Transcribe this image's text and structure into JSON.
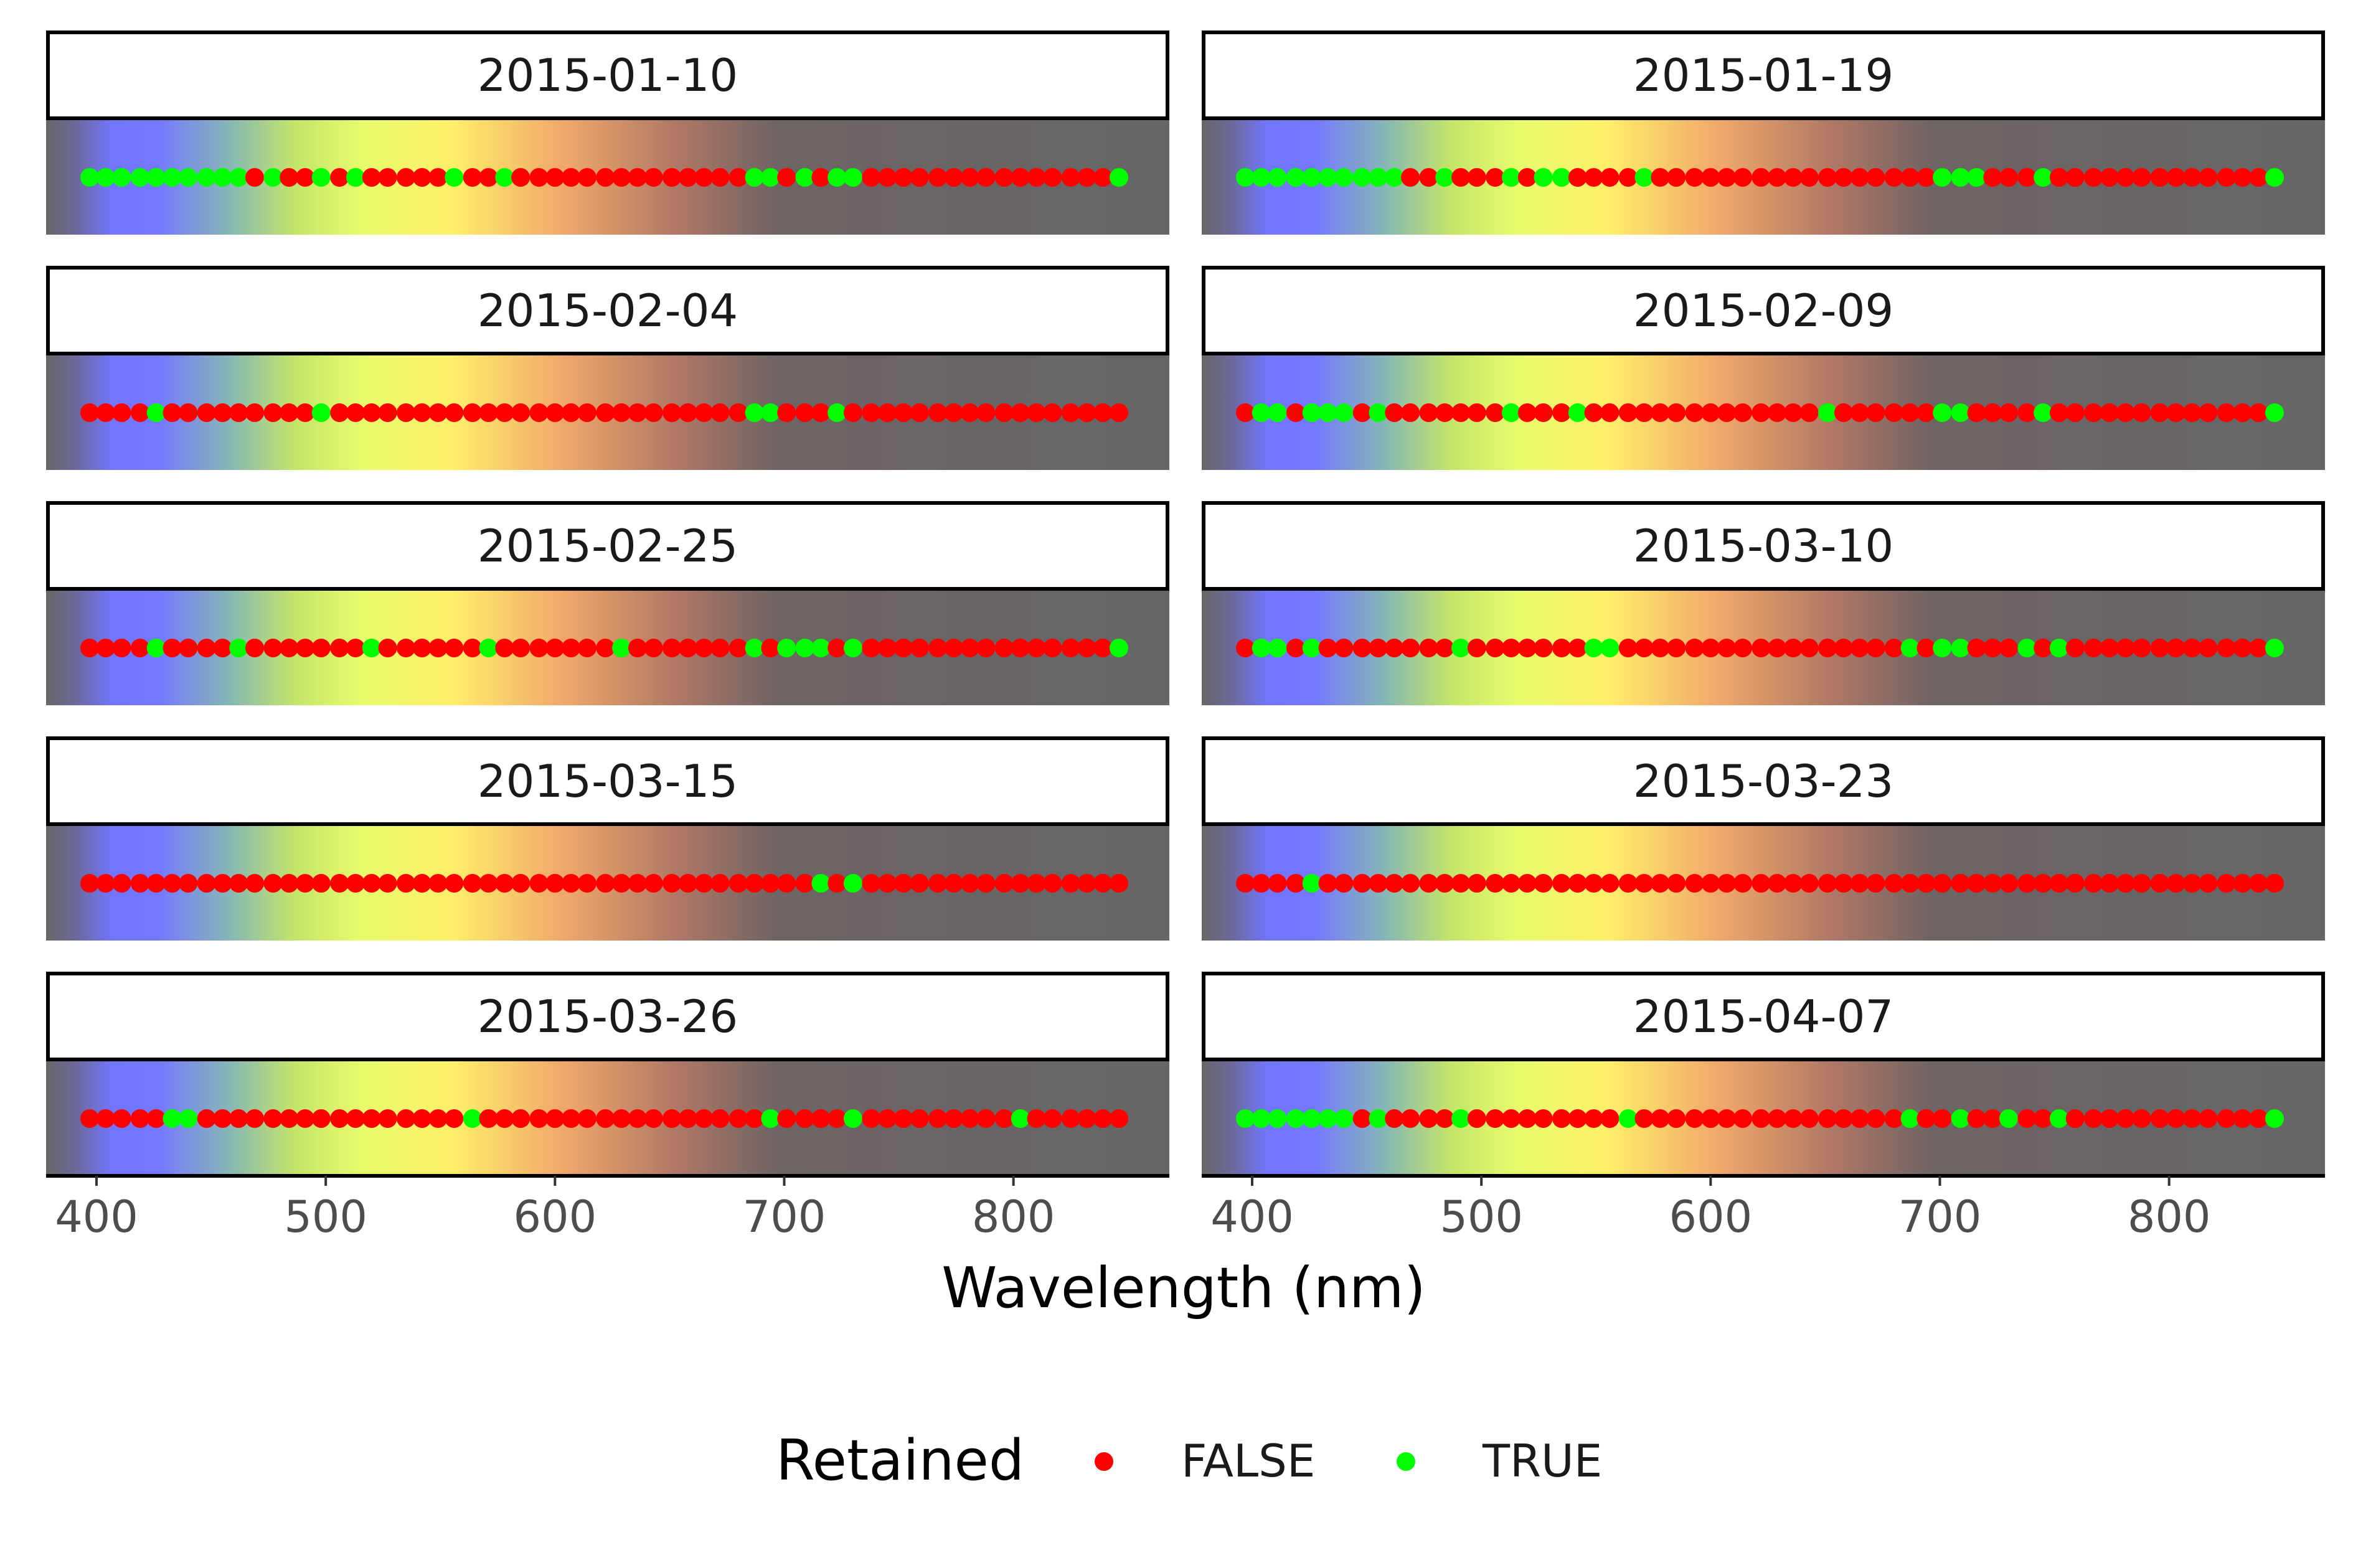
{
  "chart_data": {
    "type": "scatter",
    "xlabel": "Wavelength (nm)",
    "xlim": [
      378,
      868
    ],
    "xticks": [
      400,
      500,
      600,
      700,
      800
    ],
    "panel_background": "spectrum-gradient",
    "legend": {
      "title": "Retained",
      "placement": "bottom",
      "entries": [
        {
          "label": "FALSE",
          "color": "#FF0000"
        },
        {
          "label": "TRUE",
          "color": "#00FF00"
        }
      ]
    },
    "x": [
      397,
      404,
      411,
      419,
      426,
      433,
      440,
      448,
      455,
      462,
      469,
      477,
      484,
      491,
      498,
      506,
      513,
      520,
      527,
      535,
      542,
      549,
      556,
      564,
      571,
      578,
      585,
      593,
      600,
      607,
      614,
      622,
      629,
      636,
      643,
      651,
      658,
      665,
      672,
      680,
      687,
      694,
      701,
      709,
      716,
      723,
      730,
      738,
      745,
      752,
      759,
      767,
      774,
      781,
      788,
      796,
      803,
      810,
      817,
      825,
      832,
      839,
      846
    ],
    "panels": [
      {
        "date": "2015-01-10",
        "retained": [
          1,
          1,
          1,
          1,
          1,
          1,
          1,
          1,
          1,
          1,
          0,
          1,
          0,
          0,
          1,
          0,
          1,
          0,
          0,
          0,
          0,
          0,
          1,
          0,
          0,
          1,
          0,
          0,
          0,
          0,
          0,
          0,
          0,
          0,
          0,
          0,
          0,
          0,
          0,
          0,
          1,
          1,
          0,
          1,
          0,
          1,
          1,
          0,
          0,
          0,
          0,
          0,
          0,
          0,
          0,
          0,
          0,
          0,
          0,
          0,
          0,
          0,
          1
        ]
      },
      {
        "date": "2015-01-19",
        "retained": [
          1,
          1,
          1,
          1,
          1,
          1,
          1,
          1,
          1,
          1,
          0,
          0,
          1,
          0,
          0,
          0,
          1,
          0,
          1,
          1,
          0,
          0,
          0,
          0,
          1,
          0,
          0,
          0,
          0,
          0,
          0,
          0,
          0,
          0,
          0,
          0,
          0,
          0,
          0,
          0,
          0,
          0,
          1,
          1,
          1,
          0,
          0,
          0,
          1,
          0,
          0,
          0,
          0,
          0,
          0,
          0,
          0,
          0,
          0,
          0,
          0,
          0,
          1
        ]
      },
      {
        "date": "2015-02-04",
        "retained": [
          0,
          0,
          0,
          0,
          1,
          0,
          0,
          0,
          0,
          0,
          0,
          0,
          0,
          0,
          1,
          0,
          0,
          0,
          0,
          0,
          0,
          0,
          0,
          0,
          0,
          0,
          0,
          0,
          0,
          0,
          0,
          0,
          0,
          0,
          0,
          0,
          0,
          0,
          0,
          0,
          1,
          1,
          0,
          0,
          0,
          1,
          0,
          0,
          0,
          0,
          0,
          0,
          0,
          0,
          0,
          0,
          0,
          0,
          0,
          0,
          0,
          0,
          0
        ]
      },
      {
        "date": "2015-02-09",
        "retained": [
          0,
          1,
          1,
          0,
          1,
          1,
          1,
          0,
          1,
          0,
          0,
          0,
          0,
          0,
          0,
          0,
          1,
          0,
          0,
          0,
          1,
          0,
          0,
          0,
          0,
          0,
          0,
          0,
          0,
          0,
          0,
          0,
          0,
          0,
          0,
          1,
          0,
          0,
          0,
          0,
          0,
          0,
          1,
          1,
          0,
          0,
          0,
          0,
          1,
          0,
          0,
          0,
          0,
          0,
          0,
          0,
          0,
          0,
          0,
          0,
          0,
          0,
          1
        ]
      },
      {
        "date": "2015-02-25",
        "retained": [
          0,
          0,
          0,
          0,
          1,
          0,
          0,
          0,
          0,
          1,
          0,
          0,
          0,
          0,
          0,
          0,
          0,
          1,
          0,
          0,
          0,
          0,
          0,
          0,
          1,
          0,
          0,
          0,
          0,
          0,
          0,
          0,
          1,
          0,
          0,
          0,
          0,
          0,
          0,
          0,
          1,
          0,
          1,
          1,
          1,
          0,
          1,
          0,
          0,
          0,
          0,
          0,
          0,
          0,
          0,
          0,
          0,
          0,
          0,
          0,
          0,
          0,
          1
        ]
      },
      {
        "date": "2015-03-10",
        "retained": [
          0,
          1,
          1,
          0,
          1,
          0,
          0,
          0,
          0,
          0,
          0,
          0,
          0,
          1,
          0,
          0,
          0,
          0,
          0,
          0,
          0,
          1,
          1,
          0,
          0,
          0,
          0,
          0,
          0,
          0,
          0,
          0,
          0,
          0,
          0,
          0,
          0,
          0,
          0,
          0,
          1,
          0,
          1,
          1,
          0,
          0,
          0,
          1,
          0,
          1,
          0,
          0,
          0,
          0,
          0,
          0,
          0,
          0,
          0,
          0,
          0,
          0,
          1
        ]
      },
      {
        "date": "2015-03-15",
        "retained": [
          0,
          0,
          0,
          0,
          0,
          0,
          0,
          0,
          0,
          0,
          0,
          0,
          0,
          0,
          0,
          0,
          0,
          0,
          0,
          0,
          0,
          0,
          0,
          0,
          0,
          0,
          0,
          0,
          0,
          0,
          0,
          0,
          0,
          0,
          0,
          0,
          0,
          0,
          0,
          0,
          0,
          0,
          0,
          0,
          1,
          0,
          1,
          0,
          0,
          0,
          0,
          0,
          0,
          0,
          0,
          0,
          0,
          0,
          0,
          0,
          0,
          0,
          0
        ]
      },
      {
        "date": "2015-03-23",
        "retained": [
          0,
          0,
          0,
          0,
          1,
          0,
          0,
          0,
          0,
          0,
          0,
          0,
          0,
          0,
          0,
          0,
          0,
          0,
          0,
          0,
          0,
          0,
          0,
          0,
          0,
          0,
          0,
          0,
          0,
          0,
          0,
          0,
          0,
          0,
          0,
          0,
          0,
          0,
          0,
          0,
          0,
          0,
          0,
          0,
          0,
          0,
          0,
          0,
          0,
          0,
          0,
          0,
          0,
          0,
          0,
          0,
          0,
          0,
          0,
          0,
          0,
          0,
          0
        ]
      },
      {
        "date": "2015-03-26",
        "retained": [
          0,
          0,
          0,
          0,
          0,
          1,
          1,
          0,
          0,
          0,
          0,
          0,
          0,
          0,
          0,
          0,
          0,
          0,
          0,
          0,
          0,
          0,
          0,
          1,
          0,
          0,
          0,
          0,
          0,
          0,
          0,
          0,
          0,
          0,
          0,
          0,
          0,
          0,
          0,
          0,
          0,
          1,
          0,
          0,
          0,
          0,
          1,
          0,
          0,
          0,
          0,
          0,
          0,
          0,
          0,
          0,
          1,
          0,
          0,
          0,
          0,
          0,
          0
        ]
      },
      {
        "date": "2015-04-07",
        "retained": [
          1,
          1,
          1,
          1,
          1,
          1,
          1,
          0,
          1,
          0,
          0,
          0,
          0,
          1,
          0,
          0,
          0,
          0,
          0,
          0,
          0,
          0,
          0,
          1,
          0,
          0,
          0,
          0,
          0,
          0,
          0,
          0,
          0,
          0,
          0,
          0,
          0,
          0,
          0,
          0,
          1,
          0,
          0,
          1,
          0,
          0,
          1,
          0,
          0,
          1,
          0,
          0,
          0,
          0,
          0,
          0,
          0,
          0,
          0,
          0,
          0,
          0,
          1
        ]
      }
    ]
  }
}
